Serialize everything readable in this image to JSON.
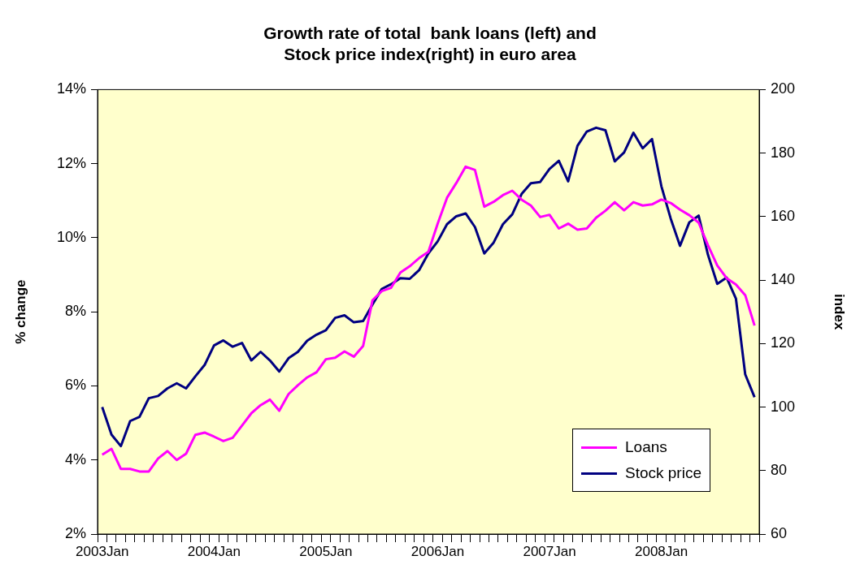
{
  "chart_data": {
    "type": "line",
    "title": "Growth rate of total  bank loans (left) and\nStock price index(right) in euro area",
    "ylabel": "% change",
    "y2label": "index",
    "categories": [
      "2003Jan",
      null,
      null,
      null,
      null,
      null,
      null,
      null,
      null,
      null,
      null,
      null,
      "2004Jan",
      null,
      null,
      null,
      null,
      null,
      null,
      null,
      null,
      null,
      null,
      null,
      "2005Jan",
      null,
      null,
      null,
      null,
      null,
      null,
      null,
      null,
      null,
      null,
      null,
      "2006Jan",
      null,
      null,
      null,
      null,
      null,
      null,
      null,
      null,
      null,
      null,
      null,
      "2007Jan",
      null,
      null,
      null,
      null,
      null,
      null,
      null,
      null,
      null,
      null,
      null,
      "2008Jan",
      null,
      null,
      null,
      null,
      null,
      null,
      null,
      null,
      null,
      null
    ],
    "series": [
      {
        "name": "Loans",
        "color": "#ff00ff",
        "values": [
          4.14,
          4.3,
          3.76,
          3.76,
          3.69,
          3.69,
          4.04,
          4.24,
          4.0,
          4.17,
          4.68,
          4.74,
          4.63,
          4.51,
          4.6,
          4.93,
          5.26,
          5.48,
          5.63,
          5.33,
          5.78,
          6.02,
          6.23,
          6.37,
          6.72,
          6.76,
          6.93,
          6.79,
          7.08,
          8.31,
          8.56,
          8.65,
          9.06,
          9.23,
          9.45,
          9.62,
          10.38,
          11.08,
          11.48,
          11.92,
          11.83,
          10.84,
          10.97,
          11.15,
          11.27,
          11.03,
          10.87,
          10.56,
          10.62,
          10.25,
          10.38,
          10.22,
          10.25,
          10.54,
          10.73,
          10.96,
          10.74,
          10.96,
          10.87,
          10.9,
          11.03,
          10.94,
          10.76,
          10.61,
          10.41,
          9.8,
          9.25,
          8.91,
          8.74,
          8.45,
          7.63
        ]
      },
      {
        "name": "Stock price",
        "color": "#000080",
        "axis": "y2",
        "values": [
          100.0,
          91.3,
          87.7,
          95.6,
          96.9,
          102.8,
          103.5,
          105.9,
          107.5,
          105.9,
          109.7,
          113.3,
          119.4,
          121.0,
          119.0,
          120.2,
          114.7,
          117.4,
          114.7,
          111.2,
          115.4,
          117.4,
          120.9,
          122.8,
          124.2,
          128.1,
          128.9,
          126.7,
          127.1,
          132.3,
          137.2,
          138.7,
          140.6,
          140.4,
          143.1,
          148.4,
          152.2,
          157.6,
          160.1,
          161.0,
          156.7,
          148.4,
          151.8,
          157.6,
          160.7,
          167.1,
          170.5,
          170.9,
          175.0,
          177.6,
          171.1,
          182.3,
          186.8,
          188.0,
          187.2,
          177.4,
          180.2,
          186.4,
          181.5,
          184.4,
          169.6,
          159.4,
          150.8,
          158.2,
          160.3,
          148.0,
          138.8,
          140.8,
          134.2,
          110.3,
          103.1
        ]
      }
    ],
    "ylim": [
      2,
      14
    ],
    "yticks": [
      {
        "value": 2,
        "label": "2%"
      },
      {
        "value": 4,
        "label": "4%"
      },
      {
        "value": 6,
        "label": "6%"
      },
      {
        "value": 8,
        "label": "8%"
      },
      {
        "value": 10,
        "label": "10%"
      },
      {
        "value": 12,
        "label": "12%"
      },
      {
        "value": 14,
        "label": "14%"
      }
    ],
    "y2lim": [
      60,
      200
    ],
    "y2ticks": [
      60,
      80,
      100,
      120,
      140,
      160,
      180,
      200
    ],
    "grid": false,
    "legend": "bottom right",
    "marker": "none",
    "line_style": "solid"
  }
}
